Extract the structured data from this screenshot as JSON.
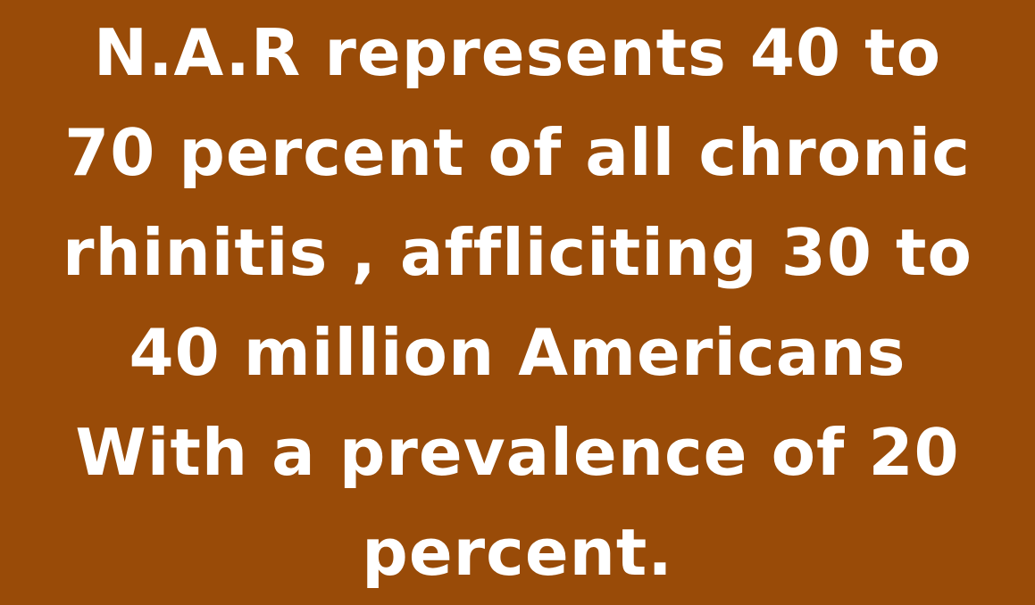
{
  "slide": {
    "background_color": "#994B08",
    "text_color": "#FFFFFF",
    "lines": [
      "N.A.R represents 40 to",
      "70 percent of all chronic",
      "rhinitis , affliciting 30 to",
      "40 million Americans",
      "With a prevalence of 20",
      "percent."
    ]
  }
}
